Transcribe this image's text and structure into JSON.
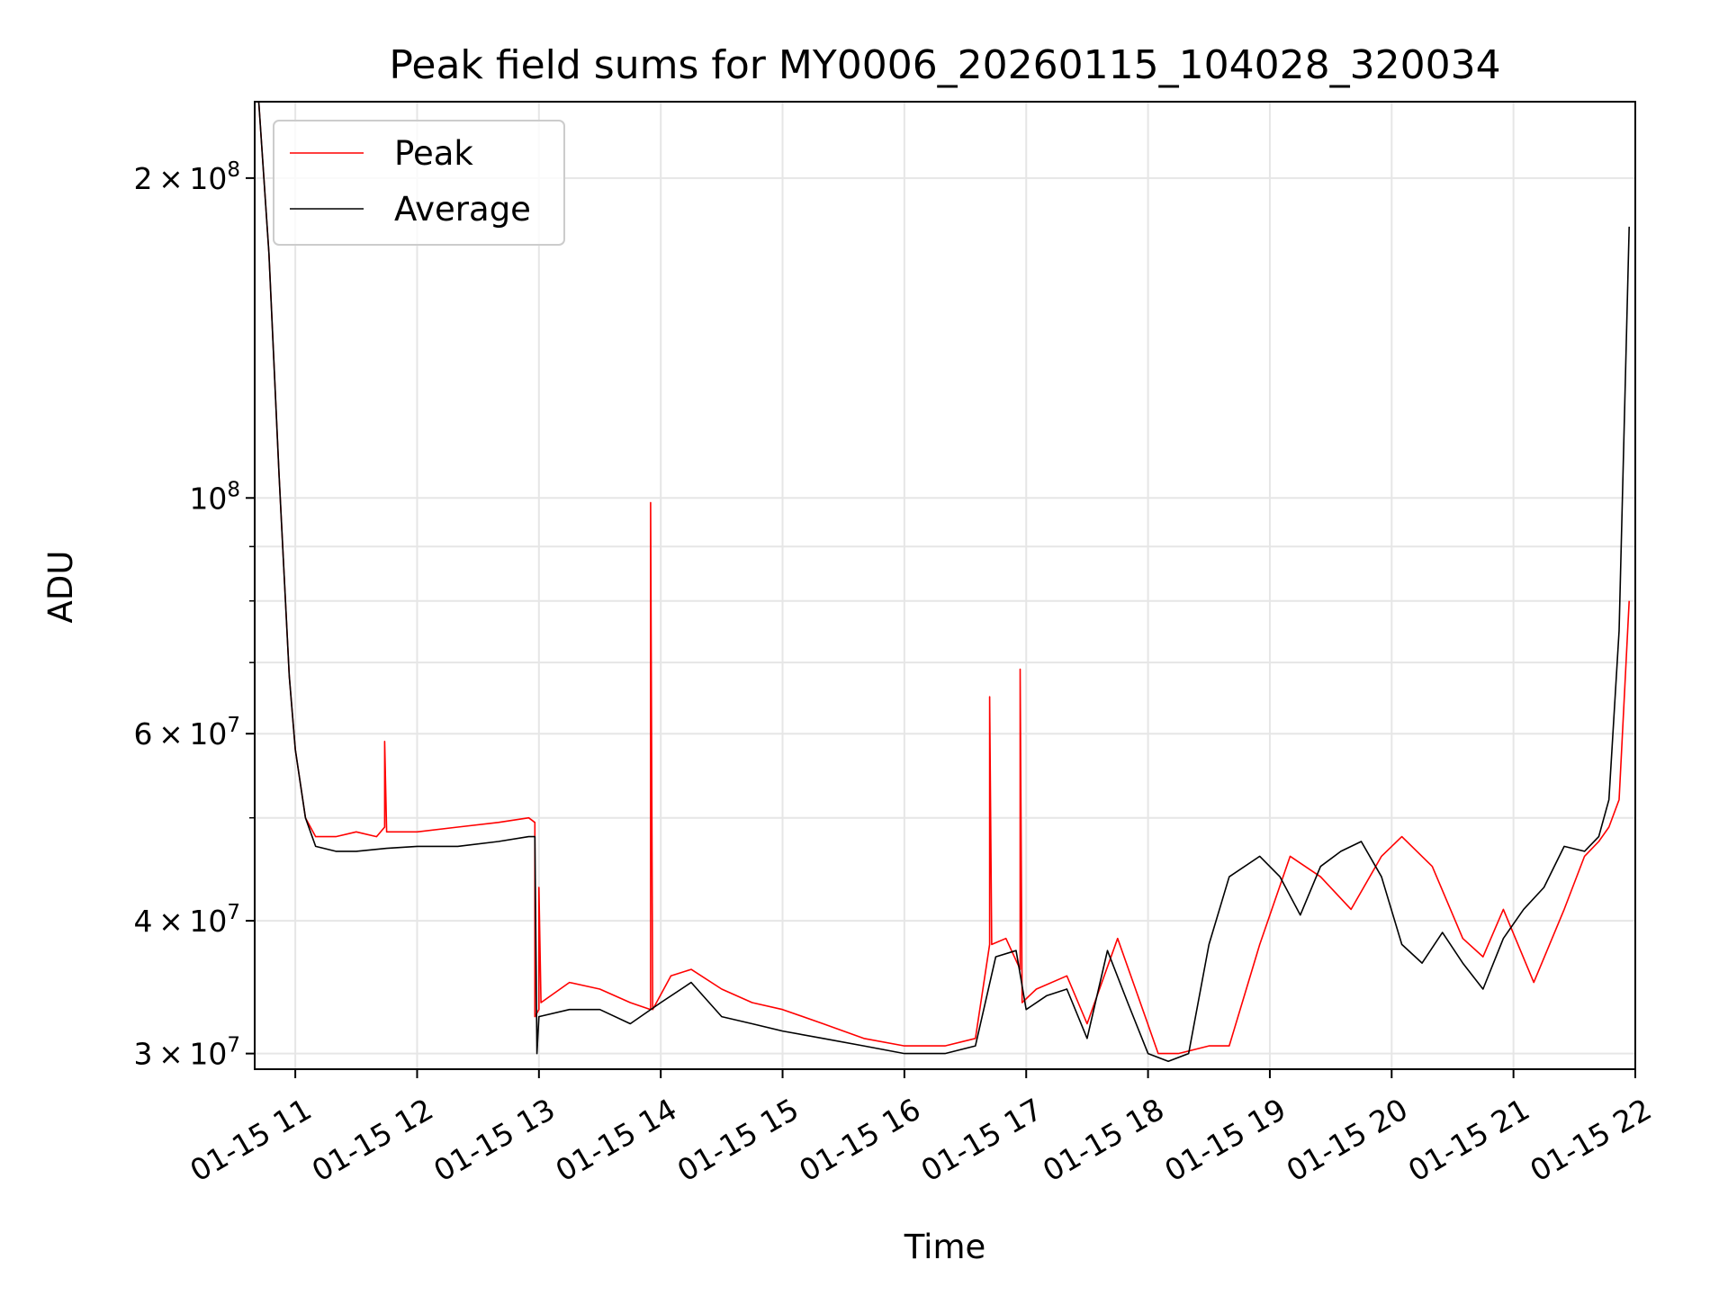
{
  "chart_data": {
    "type": "line",
    "title": "Peak field sums for MY0006_20260115_104028_320034",
    "xlabel": "Time",
    "ylabel": "ADU",
    "x_type": "time",
    "xlim": [
      "2026-01-15 10:40",
      "2026-01-15 22:00"
    ],
    "ylim": [
      29000000,
      236000000
    ],
    "yscale": "log",
    "grid": true,
    "legend_position": "top-left",
    "x_tick_labels": [
      "01-15 11",
      "01-15 12",
      "01-15 13",
      "01-15 14",
      "01-15 15",
      "01-15 16",
      "01-15 17",
      "01-15 18",
      "01-15 19",
      "01-15 20",
      "01-15 21",
      "01-15 22"
    ],
    "x_tick_values": [
      "2026-01-15 11:00",
      "2026-01-15 12:00",
      "2026-01-15 13:00",
      "2026-01-15 14:00",
      "2026-01-15 15:00",
      "2026-01-15 16:00",
      "2026-01-15 17:00",
      "2026-01-15 18:00",
      "2026-01-15 19:00",
      "2026-01-15 20:00",
      "2026-01-15 21:00",
      "2026-01-15 22:00"
    ],
    "y_major_ticks": [
      {
        "value": 30000000,
        "mantissa": "3",
        "exponent": "7"
      },
      {
        "value": 40000000,
        "mantissa": "4",
        "exponent": "7"
      },
      {
        "value": 60000000,
        "mantissa": "6",
        "exponent": "7"
      },
      {
        "value": 100000000,
        "mantissa": "",
        "exponent": "8"
      },
      {
        "value": 200000000,
        "mantissa": "2",
        "exponent": "8"
      }
    ],
    "y_minor_ticks": [
      50000000,
      70000000,
      80000000,
      90000000
    ],
    "series": [
      {
        "name": "Peak",
        "color": "#ff0000",
        "x": [
          "2026-01-15 10:42",
          "2026-01-15 10:47",
          "2026-01-15 10:52",
          "2026-01-15 10:57",
          "2026-01-15 11:00",
          "2026-01-15 11:05",
          "2026-01-15 11:10",
          "2026-01-15 11:20",
          "2026-01-15 11:30",
          "2026-01-15 11:40",
          "2026-01-15 11:44",
          "2026-01-15 11:44",
          "2026-01-15 11:45",
          "2026-01-15 12:00",
          "2026-01-15 12:20",
          "2026-01-15 12:40",
          "2026-01-15 12:55",
          "2026-01-15 12:58",
          "2026-01-15 12:58",
          "2026-01-15 13:00",
          "2026-01-15 13:00",
          "2026-01-15 13:01",
          "2026-01-15 13:15",
          "2026-01-15 13:30",
          "2026-01-15 13:45",
          "2026-01-15 13:55",
          "2026-01-15 13:55",
          "2026-01-15 13:56",
          "2026-01-15 14:05",
          "2026-01-15 14:15",
          "2026-01-15 14:30",
          "2026-01-15 14:45",
          "2026-01-15 15:00",
          "2026-01-15 15:20",
          "2026-01-15 15:40",
          "2026-01-15 16:00",
          "2026-01-15 16:20",
          "2026-01-15 16:35",
          "2026-01-15 16:42",
          "2026-01-15 16:42",
          "2026-01-15 16:43",
          "2026-01-15 16:50",
          "2026-01-15 16:57",
          "2026-01-15 16:57",
          "2026-01-15 16:58",
          "2026-01-15 17:05",
          "2026-01-15 17:20",
          "2026-01-15 17:30",
          "2026-01-15 17:45",
          "2026-01-15 17:55",
          "2026-01-15 18:05",
          "2026-01-15 18:15",
          "2026-01-15 18:30",
          "2026-01-15 18:40",
          "2026-01-15 18:55",
          "2026-01-15 19:10",
          "2026-01-15 19:25",
          "2026-01-15 19:40",
          "2026-01-15 19:55",
          "2026-01-15 20:05",
          "2026-01-15 20:20",
          "2026-01-15 20:35",
          "2026-01-15 20:45",
          "2026-01-15 20:55",
          "2026-01-15 21:10",
          "2026-01-15 21:25",
          "2026-01-15 21:35",
          "2026-01-15 21:42",
          "2026-01-15 21:47",
          "2026-01-15 21:52",
          "2026-01-15 21:57"
        ],
        "y": [
          236000000,
          170000000,
          105000000,
          68000000,
          58000000,
          50000000,
          48000000,
          48000000,
          48500000,
          48000000,
          49000000,
          59000000,
          48500000,
          48500000,
          49000000,
          49500000,
          50000000,
          49500000,
          32500000,
          33000000,
          43000000,
          33500000,
          35000000,
          34500000,
          33500000,
          33000000,
          99000000,
          33000000,
          35500000,
          36000000,
          34500000,
          33500000,
          33000000,
          32000000,
          31000000,
          30500000,
          30500000,
          31000000,
          38000000,
          65000000,
          38000000,
          38500000,
          36000000,
          69000000,
          33500000,
          34500000,
          35500000,
          32000000,
          38500000,
          34000000,
          30000000,
          30000000,
          30500000,
          30500000,
          38000000,
          46000000,
          44000000,
          41000000,
          46000000,
          48000000,
          45000000,
          38500000,
          37000000,
          41000000,
          35000000,
          41000000,
          46000000,
          47500000,
          49000000,
          52000000,
          80000000
        ]
      },
      {
        "name": "Average",
        "color": "#000000",
        "x": [
          "2026-01-15 10:42",
          "2026-01-15 10:47",
          "2026-01-15 10:52",
          "2026-01-15 10:57",
          "2026-01-15 11:00",
          "2026-01-15 11:05",
          "2026-01-15 11:10",
          "2026-01-15 11:20",
          "2026-01-15 11:30",
          "2026-01-15 11:45",
          "2026-01-15 12:00",
          "2026-01-15 12:20",
          "2026-01-15 12:40",
          "2026-01-15 12:55",
          "2026-01-15 12:58",
          "2026-01-15 12:59",
          "2026-01-15 13:00",
          "2026-01-15 13:15",
          "2026-01-15 13:30",
          "2026-01-15 13:45",
          "2026-01-15 14:00",
          "2026-01-15 14:15",
          "2026-01-15 14:30",
          "2026-01-15 14:45",
          "2026-01-15 15:00",
          "2026-01-15 15:20",
          "2026-01-15 15:40",
          "2026-01-15 16:00",
          "2026-01-15 16:20",
          "2026-01-15 16:35",
          "2026-01-15 16:45",
          "2026-01-15 16:55",
          "2026-01-15 17:00",
          "2026-01-15 17:10",
          "2026-01-15 17:20",
          "2026-01-15 17:30",
          "2026-01-15 17:40",
          "2026-01-15 17:50",
          "2026-01-15 18:00",
          "2026-01-15 18:10",
          "2026-01-15 18:20",
          "2026-01-15 18:30",
          "2026-01-15 18:40",
          "2026-01-15 18:55",
          "2026-01-15 19:05",
          "2026-01-15 19:15",
          "2026-01-15 19:25",
          "2026-01-15 19:35",
          "2026-01-15 19:45",
          "2026-01-15 19:55",
          "2026-01-15 20:05",
          "2026-01-15 20:15",
          "2026-01-15 20:25",
          "2026-01-15 20:35",
          "2026-01-15 20:45",
          "2026-01-15 20:55",
          "2026-01-15 21:05",
          "2026-01-15 21:15",
          "2026-01-15 21:25",
          "2026-01-15 21:35",
          "2026-01-15 21:42",
          "2026-01-15 21:47",
          "2026-01-15 21:52",
          "2026-01-15 21:57"
        ],
        "y": [
          236000000,
          170000000,
          105000000,
          68000000,
          58000000,
          50000000,
          47000000,
          46500000,
          46500000,
          46800000,
          47000000,
          47000000,
          47500000,
          48000000,
          48000000,
          30000000,
          32500000,
          33000000,
          33000000,
          32000000,
          33500000,
          35000000,
          32500000,
          32000000,
          31500000,
          31000000,
          30500000,
          30000000,
          30000000,
          30500000,
          37000000,
          37500000,
          33000000,
          34000000,
          34500000,
          31000000,
          37500000,
          33500000,
          30000000,
          29500000,
          30000000,
          38000000,
          44000000,
          46000000,
          44000000,
          40500000,
          45000000,
          46500000,
          47500000,
          44000000,
          38000000,
          36500000,
          39000000,
          36500000,
          34500000,
          38500000,
          41000000,
          43000000,
          47000000,
          46500000,
          48000000,
          52000000,
          75000000,
          180000000
        ]
      }
    ]
  }
}
